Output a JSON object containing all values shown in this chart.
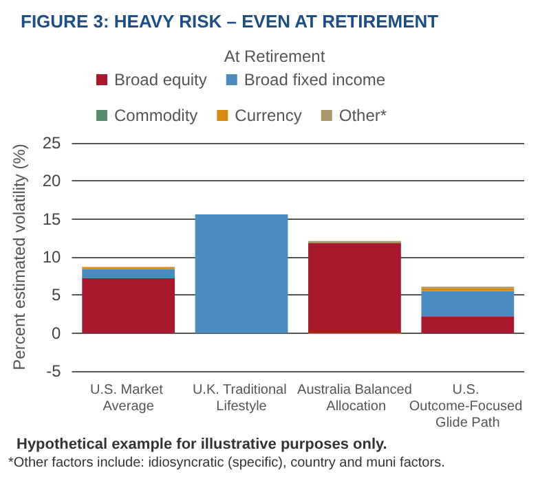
{
  "chart_data": {
    "type": "bar",
    "title": "FIGURE 3: HEAVY RISK – EVEN AT RETIREMENT",
    "subtitle": "At Retirement",
    "ylabel": "Percent estimated volatility (%)",
    "categories": [
      "U.S. Market Average",
      "U.K. Traditional Lifestyle",
      "Australia Balanced Allocation",
      "U.S. Outcome-Focused Glide Path"
    ],
    "stacked": true,
    "series": [
      {
        "name": "Broad equity",
        "color": "#a8192e",
        "values": [
          7.2,
          null,
          11.8,
          2.2
        ]
      },
      {
        "name": "Broad fixed income",
        "color": "#4a8bc0",
        "values": [
          1.2,
          15.6,
          null,
          3.3
        ]
      },
      {
        "name": "Commodity",
        "color": "#5a8a70",
        "values": [
          null,
          null,
          null,
          null
        ]
      },
      {
        "name": "Currency",
        "color": "#d88a10",
        "values": [
          0.3,
          null,
          -0.1,
          0.4
        ]
      },
      {
        "name": "Other*",
        "color": "#a89868",
        "values": [
          null,
          null,
          0.3,
          0.2
        ]
      }
    ],
    "ylim": [
      -5,
      25
    ],
    "yticks": [
      -5,
      0,
      5,
      10,
      15,
      20,
      25
    ],
    "grid": "y",
    "legend": "top",
    "annotations": [
      "Hypothetical example for illustrative purposes only.",
      "*Other factors include: idiosyncratic (specific), country and muni factors."
    ]
  }
}
